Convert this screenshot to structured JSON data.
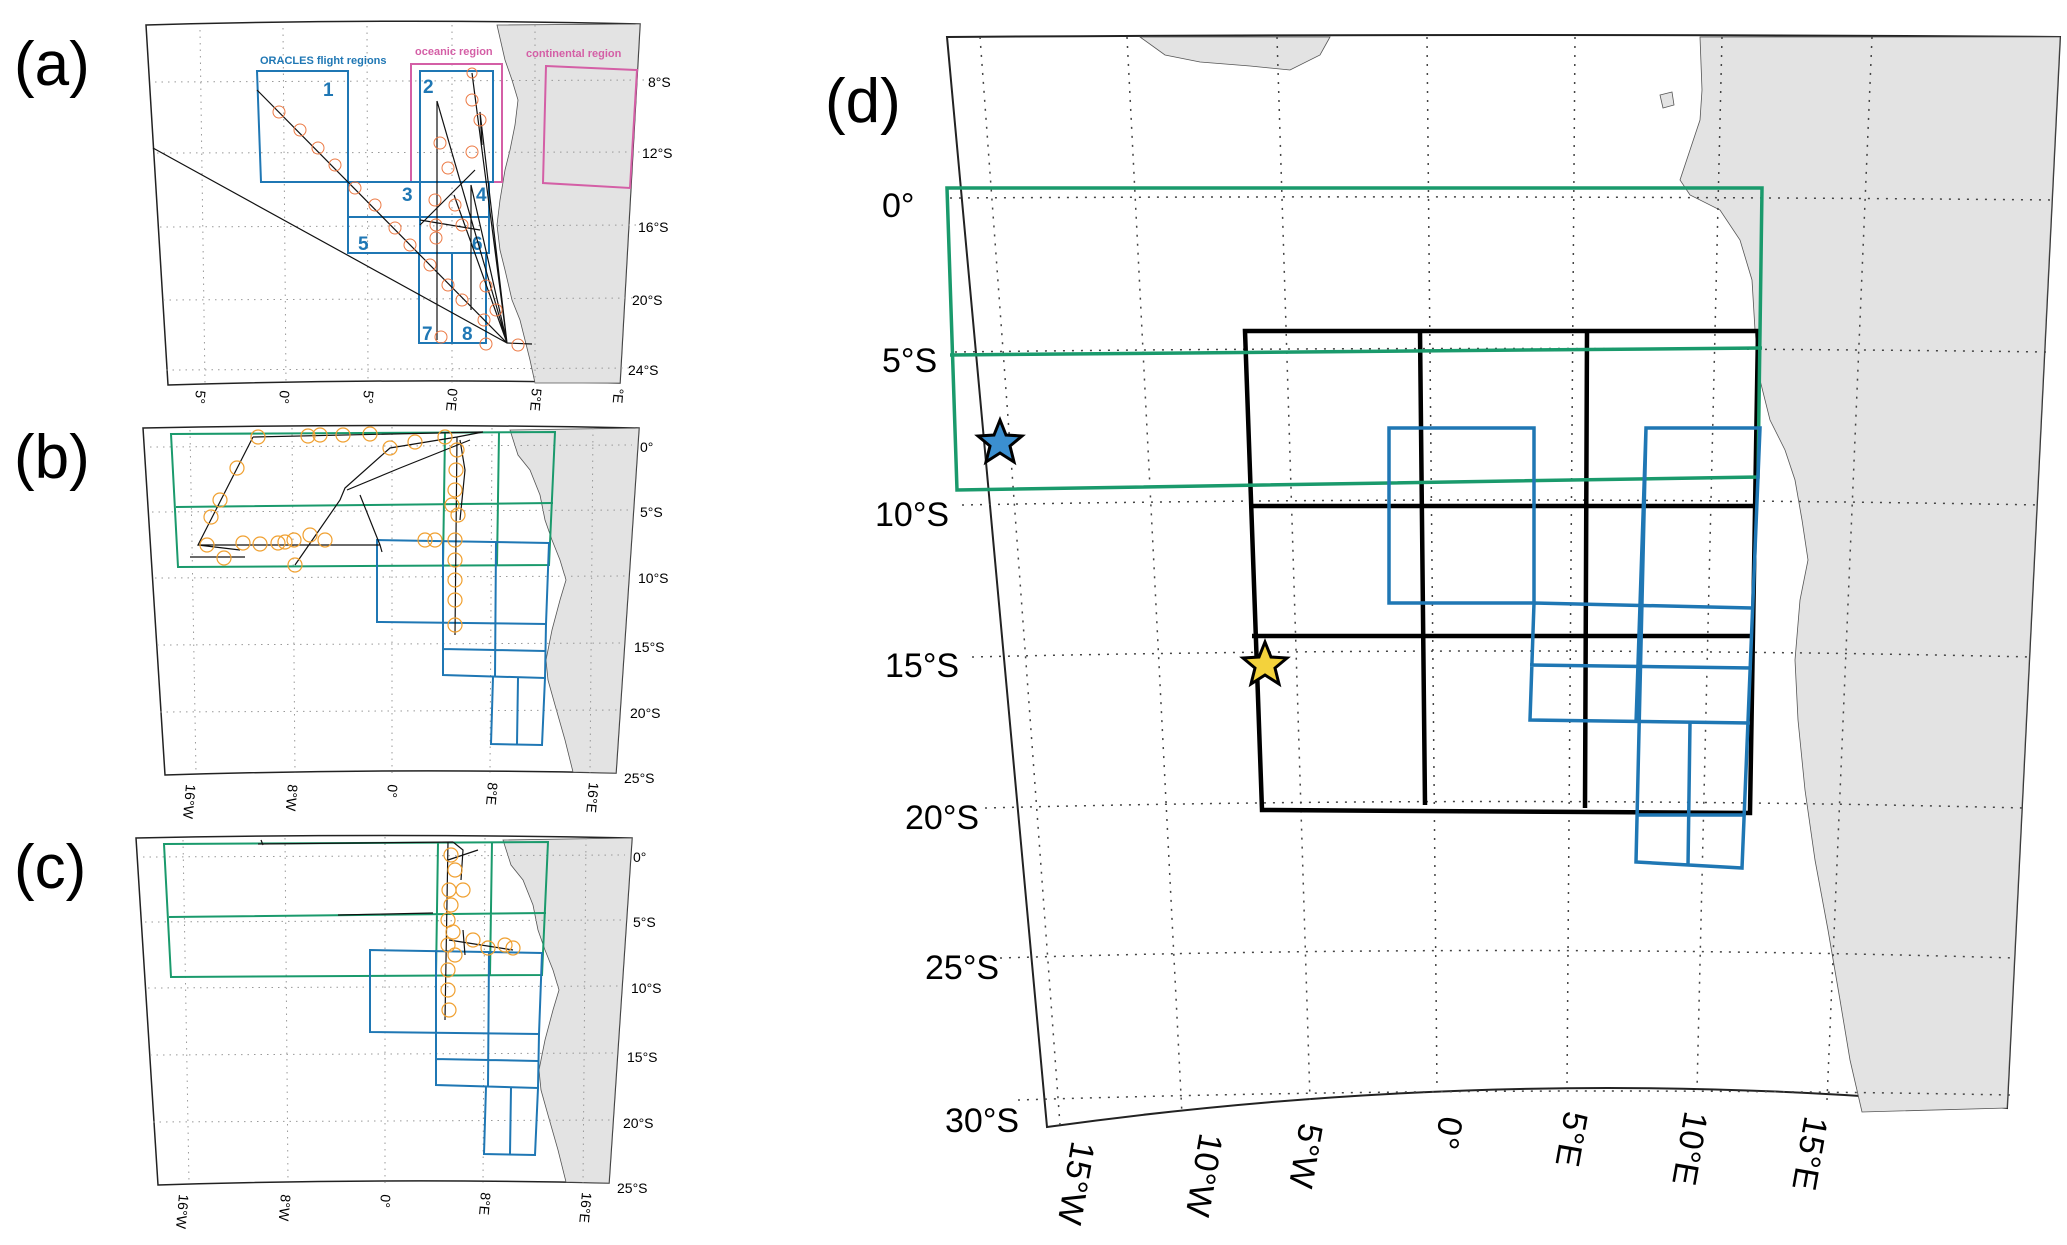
{
  "colors": {
    "flight_regions": "#1f77b4",
    "oceanic_continental": "#d45fa6",
    "green_regions": "#1a9a6c",
    "black_grid": "#000000",
    "land": "#e3e3e3",
    "circles_a": "#ec7a45",
    "circles_bc": "#f0a030",
    "star_blue": "#3b8fd0",
    "star_yellow": "#f3d23c"
  },
  "panels": {
    "a": {
      "label": "(a)",
      "legend": {
        "flight_regions": "ORACLES flight regions",
        "oceanic": "oceanic region",
        "continental": "continental region"
      },
      "region_numbers": [
        "1",
        "2",
        "3",
        "4",
        "5",
        "6",
        "7",
        "8"
      ],
      "lat_labels": [
        "8°S",
        "12°S",
        "16°S",
        "20°S",
        "24°S"
      ],
      "lon_labels": [
        "5°",
        "0°",
        "5°",
        "0°E",
        "5°E",
        "°E"
      ]
    },
    "b": {
      "label": "(b)",
      "lat_labels": [
        "0°",
        "5°S",
        "10°S",
        "15°S",
        "20°S",
        "25°S"
      ],
      "lon_labels": [
        "16°W",
        "8°W",
        "0°",
        "8°E",
        "16°E"
      ]
    },
    "c": {
      "label": "(c)",
      "lat_labels": [
        "0°",
        "5°S",
        "10°S",
        "15°S",
        "20°S",
        "25°S"
      ],
      "lon_labels": [
        "16°W",
        "8°W",
        "0°",
        "8°E",
        "16°E"
      ]
    },
    "d": {
      "label": "(d)",
      "lat_labels": [
        "0°",
        "5°S",
        "10°S",
        "15°S",
        "20°S",
        "25°S",
        "30°S"
      ],
      "lon_labels": [
        "15°W",
        "10°W",
        "5°W",
        "0°",
        "5°E",
        "10°E",
        "15°E"
      ],
      "markers": [
        {
          "name": "blue-star",
          "color": "#3b8fd0"
        },
        {
          "name": "yellow-star",
          "color": "#f3d23c"
        }
      ]
    }
  }
}
